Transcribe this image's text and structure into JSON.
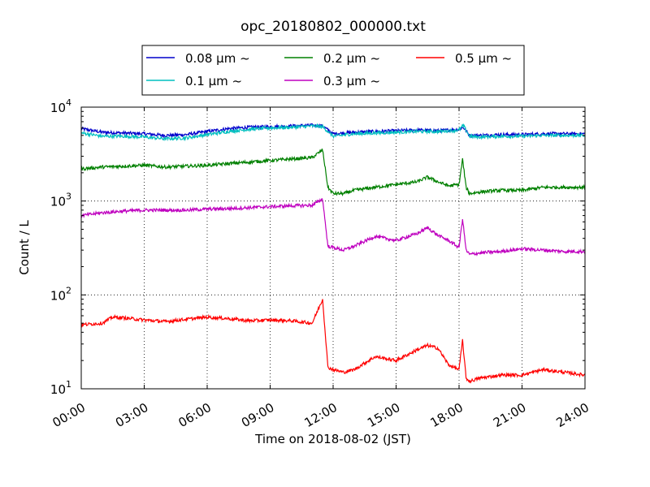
{
  "chart_data": {
    "type": "line",
    "title": "opc_20180802_000000.txt",
    "xlabel": "Time on 2018-08-02 (JST)",
    "ylabel": "Count / L",
    "x_ticks": [
      "00:00",
      "03:00",
      "06:00",
      "09:00",
      "12:00",
      "15:00",
      "18:00",
      "21:00",
      "24:00"
    ],
    "xlim": [
      "00:00",
      "24:00"
    ],
    "y_scale": "log",
    "ylim": [
      10,
      10000
    ],
    "y_ticks": [
      {
        "base": "10",
        "exp": "1"
      },
      {
        "base": "10",
        "exp": "2"
      },
      {
        "base": "10",
        "exp": "3"
      },
      {
        "base": "10",
        "exp": "4"
      }
    ],
    "grid": true,
    "legend_placement": "top-center",
    "series": [
      {
        "name": "0.08 μm ~",
        "color": "#0000cc",
        "x": [
          "00:00",
          "01:00",
          "02:00",
          "03:00",
          "04:00",
          "05:00",
          "06:00",
          "07:00",
          "08:00",
          "09:00",
          "10:00",
          "11:00",
          "11:30",
          "12:00",
          "13:00",
          "14:00",
          "15:00",
          "16:00",
          "17:00",
          "18:00",
          "18:12",
          "18:30",
          "19:00",
          "20:00",
          "21:00",
          "22:00",
          "23:00",
          "24:00"
        ],
        "values": [
          5900,
          5400,
          5300,
          5200,
          5000,
          5100,
          5500,
          5900,
          6100,
          6200,
          6300,
          6400,
          6300,
          5200,
          5400,
          5500,
          5600,
          5700,
          5600,
          5800,
          6100,
          5000,
          5000,
          5100,
          5100,
          5200,
          5200,
          5200
        ]
      },
      {
        "name": "0.1 μm ~",
        "color": "#00bfbf",
        "x": [
          "00:00",
          "01:00",
          "02:00",
          "03:00",
          "04:00",
          "05:00",
          "06:00",
          "07:00",
          "08:00",
          "09:00",
          "10:00",
          "11:00",
          "11:30",
          "12:00",
          "13:00",
          "14:00",
          "15:00",
          "16:00",
          "17:00",
          "18:00",
          "18:12",
          "18:30",
          "19:00",
          "20:00",
          "21:00",
          "22:00",
          "23:00",
          "24:00"
        ],
        "values": [
          5300,
          4900,
          4900,
          4800,
          4600,
          4700,
          5100,
          5500,
          5800,
          6000,
          6100,
          6300,
          6200,
          4900,
          5200,
          5300,
          5400,
          5500,
          5500,
          5700,
          6400,
          4900,
          4800,
          4900,
          4900,
          5000,
          5000,
          5000
        ]
      },
      {
        "name": "0.2 μm ~",
        "color": "#008000",
        "x": [
          "00:00",
          "01:00",
          "02:00",
          "03:00",
          "04:00",
          "05:00",
          "06:00",
          "07:00",
          "08:00",
          "09:00",
          "10:00",
          "11:00",
          "11:30",
          "11:45",
          "12:00",
          "12:30",
          "13:00",
          "14:00",
          "15:00",
          "16:00",
          "16:30",
          "17:00",
          "17:30",
          "18:00",
          "18:10",
          "18:20",
          "18:30",
          "19:00",
          "20:00",
          "21:00",
          "22:00",
          "23:00",
          "24:00"
        ],
        "values": [
          2200,
          2300,
          2350,
          2400,
          2300,
          2350,
          2400,
          2500,
          2600,
          2700,
          2800,
          2900,
          3500,
          1400,
          1200,
          1200,
          1300,
          1400,
          1500,
          1600,
          1800,
          1600,
          1450,
          1500,
          2800,
          1400,
          1200,
          1250,
          1300,
          1300,
          1400,
          1400,
          1400
        ]
      },
      {
        "name": "0.3 μm ~",
        "color": "#bf00bf",
        "x": [
          "00:00",
          "01:00",
          "02:00",
          "03:00",
          "04:00",
          "05:00",
          "06:00",
          "07:00",
          "08:00",
          "09:00",
          "10:00",
          "11:00",
          "11:30",
          "11:45",
          "12:00",
          "12:30",
          "13:00",
          "14:00",
          "15:00",
          "16:00",
          "16:30",
          "17:00",
          "17:30",
          "18:00",
          "18:10",
          "18:20",
          "18:30",
          "19:00",
          "20:00",
          "21:00",
          "22:00",
          "23:00",
          "24:00"
        ],
        "values": [
          700,
          750,
          780,
          800,
          800,
          800,
          820,
          830,
          850,
          870,
          890,
          900,
          1050,
          330,
          320,
          300,
          330,
          420,
          380,
          450,
          520,
          430,
          380,
          320,
          650,
          300,
          270,
          280,
          290,
          310,
          300,
          290,
          290
        ]
      },
      {
        "name": "0.5 μm ~",
        "color": "#ff0000",
        "x": [
          "00:00",
          "01:00",
          "01:30",
          "02:00",
          "03:00",
          "04:00",
          "05:00",
          "06:00",
          "07:00",
          "08:00",
          "09:00",
          "10:00",
          "11:00",
          "11:30",
          "11:45",
          "12:00",
          "12:30",
          "13:00",
          "14:00",
          "15:00",
          "16:00",
          "16:30",
          "17:00",
          "17:30",
          "18:00",
          "18:10",
          "18:20",
          "18:30",
          "19:00",
          "20:00",
          "21:00",
          "22:00",
          "23:00",
          "24:00"
        ],
        "values": [
          48,
          50,
          58,
          57,
          54,
          52,
          55,
          58,
          56,
          53,
          54,
          53,
          50,
          90,
          17,
          16,
          15,
          16,
          22,
          20,
          26,
          29,
          27,
          18,
          16,
          33,
          13,
          12,
          13,
          14,
          14,
          16,
          15,
          14
        ]
      }
    ]
  }
}
